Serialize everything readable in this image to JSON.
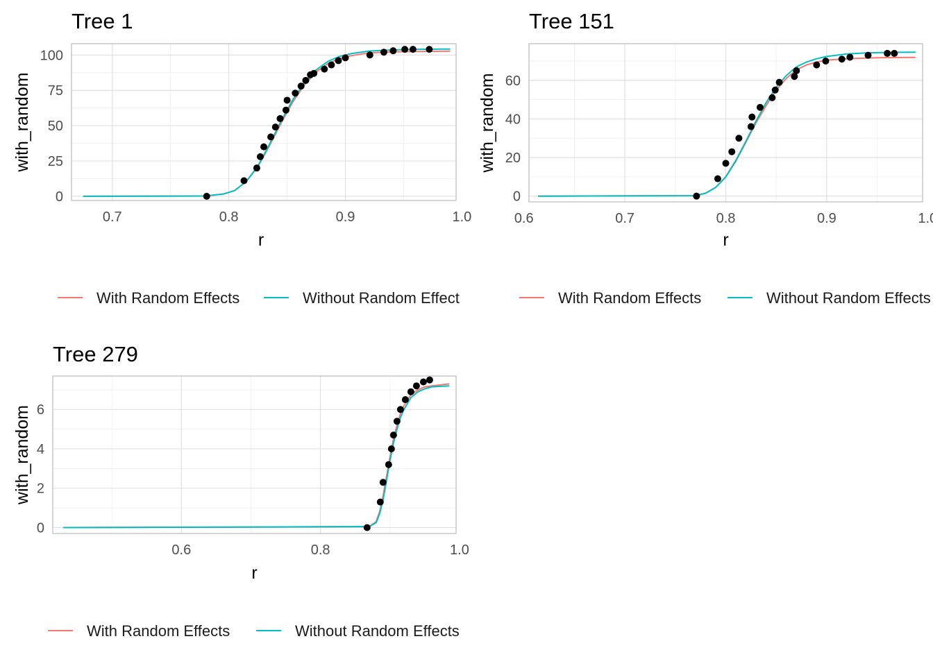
{
  "colors": {
    "with_random": "#f8766d",
    "without_random": "#00bfc4",
    "points": "#000000"
  },
  "chart_data": [
    {
      "type": "line",
      "title": "Tree 1",
      "xlabel": "r",
      "ylabel": "with_random",
      "xlim": [
        0.665,
        0.995
      ],
      "ylim": [
        -3,
        108
      ],
      "xticks": [
        0.7,
        0.8,
        0.9,
        1.0
      ],
      "xtick_labels": [
        "0.7",
        "0.8",
        "0.9",
        "1.0"
      ],
      "yticks": [
        0,
        25,
        50,
        75,
        100
      ],
      "ytick_labels": [
        "0",
        "25",
        "50",
        "75",
        "100"
      ],
      "grid": true,
      "legend": "bottom",
      "legend_entries": [
        "With Random Effects",
        "Without Random Effect"
      ],
      "series": [
        {
          "name": "With Random Effects",
          "x": [
            0.675,
            0.78,
            0.795,
            0.805,
            0.815,
            0.825,
            0.835,
            0.845,
            0.855,
            0.865,
            0.875,
            0.885,
            0.895,
            0.905,
            0.92,
            0.94,
            0.96,
            0.99
          ],
          "y": [
            0,
            0.2,
            1.5,
            4,
            10.5,
            21,
            36,
            52,
            67,
            79,
            88,
            94,
            97.5,
            99.5,
            101.5,
            102.2,
            102.5,
            102.7
          ]
        },
        {
          "name": "Without Random Effect",
          "x": [
            0.675,
            0.78,
            0.795,
            0.805,
            0.815,
            0.825,
            0.835,
            0.845,
            0.855,
            0.865,
            0.875,
            0.885,
            0.895,
            0.905,
            0.92,
            0.94,
            0.96,
            0.99
          ],
          "y": [
            0,
            0.2,
            1.5,
            4,
            10.5,
            21.5,
            37,
            53.5,
            68.5,
            80.5,
            89.5,
            95.5,
            99,
            101,
            102.8,
            103.6,
            104,
            104.2
          ]
        }
      ],
      "points": {
        "x": [
          0.781,
          0.813,
          0.824,
          0.827,
          0.83,
          0.836,
          0.84,
          0.844,
          0.849,
          0.85,
          0.857,
          0.862,
          0.866,
          0.87,
          0.873,
          0.882,
          0.888,
          0.894,
          0.9,
          0.921,
          0.933,
          0.941,
          0.951,
          0.958,
          0.972
        ],
        "y": [
          0,
          11,
          20,
          28,
          35,
          42,
          49,
          55,
          61,
          68,
          73,
          78,
          82,
          86,
          87,
          90,
          93,
          96,
          98,
          100,
          102,
          103,
          104,
          104,
          104
        ]
      }
    },
    {
      "type": "line",
      "title": "Tree 151",
      "xlabel": "r",
      "ylabel": "with_random",
      "xlim": [
        0.605,
        0.995
      ],
      "ylim": [
        -3,
        79
      ],
      "xticks": [
        0.6,
        0.7,
        0.8,
        0.9,
        1.0
      ],
      "xtick_labels": [
        "0.6",
        "0.7",
        "0.8",
        "0.9",
        "1.0"
      ],
      "yticks": [
        0,
        20,
        40,
        60
      ],
      "ytick_labels": [
        "0",
        "20",
        "40",
        "60"
      ],
      "grid": true,
      "legend": "bottom",
      "legend_entries": [
        "With Random Effects",
        "Without Random Effects"
      ],
      "series": [
        {
          "name": "With Random Effects",
          "x": [
            0.614,
            0.77,
            0.78,
            0.79,
            0.8,
            0.81,
            0.82,
            0.83,
            0.84,
            0.85,
            0.86,
            0.87,
            0.88,
            0.89,
            0.9,
            0.92,
            0.94,
            0.96,
            0.988
          ],
          "y": [
            0,
            0.2,
            1.5,
            4.5,
            10,
            18,
            28,
            38,
            47,
            55,
            61,
            65.5,
            68,
            69.5,
            70.5,
            71.2,
            71.6,
            71.8,
            71.9
          ]
        },
        {
          "name": "Without Random Effects",
          "x": [
            0.614,
            0.77,
            0.78,
            0.79,
            0.8,
            0.81,
            0.82,
            0.83,
            0.84,
            0.85,
            0.86,
            0.87,
            0.88,
            0.89,
            0.9,
            0.92,
            0.94,
            0.96,
            0.988
          ],
          "y": [
            0,
            0.2,
            1.5,
            4.5,
            10,
            18.5,
            28.5,
            39,
            48.5,
            56.5,
            62.5,
            67,
            69.5,
            71.2,
            72.4,
            73.7,
            74.2,
            74.5,
            74.6
          ]
        }
      ],
      "points": {
        "x": [
          0.771,
          0.792,
          0.8,
          0.806,
          0.813,
          0.825,
          0.826,
          0.834,
          0.846,
          0.849,
          0.853,
          0.868,
          0.87,
          0.89,
          0.899,
          0.915,
          0.923,
          0.941,
          0.96,
          0.967
        ],
        "y": [
          0,
          9,
          17,
          23,
          30,
          36,
          41,
          46,
          51,
          55,
          59,
          62,
          65,
          68,
          70,
          71,
          72,
          73,
          74,
          74
        ]
      }
    },
    {
      "type": "line",
      "title": "Tree 279",
      "xlabel": "r",
      "ylabel": "with_random",
      "xlim": [
        0.415,
        0.995
      ],
      "ylim": [
        -0.3,
        7.7
      ],
      "xticks": [
        0.6,
        0.8,
        1.0
      ],
      "xtick_labels": [
        "0.6",
        "0.8",
        "1.0"
      ],
      "yticks": [
        0,
        2,
        4,
        6
      ],
      "ytick_labels": [
        "0",
        "2",
        "4",
        "6"
      ],
      "grid": true,
      "legend": "bottom",
      "legend_entries": [
        "With Random Effects",
        "Without Random Effects"
      ],
      "series": [
        {
          "name": "With Random Effects",
          "x": [
            0.43,
            0.87,
            0.88,
            0.885,
            0.89,
            0.895,
            0.9,
            0.905,
            0.91,
            0.915,
            0.92,
            0.93,
            0.94,
            0.95,
            0.96,
            0.985
          ],
          "y": [
            0,
            0.05,
            0.3,
            0.8,
            1.6,
            2.6,
            3.6,
            4.5,
            5.2,
            5.8,
            6.2,
            6.75,
            7.0,
            7.15,
            7.2,
            7.3
          ]
        },
        {
          "name": "Without Random Effects",
          "x": [
            0.43,
            0.87,
            0.88,
            0.885,
            0.89,
            0.895,
            0.9,
            0.905,
            0.91,
            0.915,
            0.92,
            0.93,
            0.94,
            0.95,
            0.96,
            0.985
          ],
          "y": [
            0,
            0.05,
            0.25,
            0.7,
            1.4,
            2.4,
            3.4,
            4.3,
            5.0,
            5.6,
            6.0,
            6.6,
            6.9,
            7.05,
            7.15,
            7.2
          ]
        }
      ],
      "points": {
        "x": [
          0.867,
          0.886,
          0.89,
          0.898,
          0.902,
          0.905,
          0.91,
          0.915,
          0.922,
          0.93,
          0.938,
          0.948,
          0.957
        ],
        "y": [
          0,
          1.3,
          2.3,
          3.2,
          4.0,
          4.7,
          5.4,
          6.0,
          6.5,
          6.9,
          7.2,
          7.4,
          7.5
        ]
      }
    }
  ]
}
